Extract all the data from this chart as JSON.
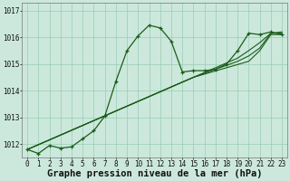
{
  "title": "Graphe pression niveau de la mer (hPa)",
  "bg_color": "#cce8dc",
  "grid_color": "#99ccb3",
  "line_color": "#1a5c1a",
  "marker_color": "#1a5c1a",
  "xlim": [
    -0.5,
    23.5
  ],
  "ylim": [
    1011.5,
    1017.3
  ],
  "yticks": [
    1012,
    1013,
    1014,
    1015,
    1016,
    1017
  ],
  "xticks": [
    0,
    1,
    2,
    3,
    4,
    5,
    6,
    7,
    8,
    9,
    10,
    11,
    12,
    13,
    14,
    15,
    16,
    17,
    18,
    19,
    20,
    21,
    22,
    23
  ],
  "series_main": [
    1011.8,
    1011.65,
    1011.95,
    1011.85,
    1011.9,
    1012.2,
    1012.5,
    1013.05,
    1014.35,
    1015.5,
    1016.05,
    1016.45,
    1016.35,
    1015.85,
    1014.7,
    1014.75,
    1014.75,
    1014.8,
    1015.0,
    1015.5,
    1016.15,
    1016.1,
    1016.2,
    1016.1
  ],
  "series_linear1": [
    1011.8,
    1011.98,
    1012.16,
    1012.34,
    1012.52,
    1012.7,
    1012.88,
    1013.06,
    1013.24,
    1013.42,
    1013.6,
    1013.78,
    1013.96,
    1014.14,
    1014.32,
    1014.5,
    1014.62,
    1014.74,
    1014.86,
    1014.98,
    1015.1,
    1015.5,
    1016.1,
    1016.1
  ],
  "series_linear2": [
    1011.8,
    1011.98,
    1012.16,
    1012.34,
    1012.52,
    1012.7,
    1012.88,
    1013.06,
    1013.24,
    1013.42,
    1013.6,
    1013.78,
    1013.96,
    1014.14,
    1014.32,
    1014.5,
    1014.65,
    1014.8,
    1014.95,
    1015.1,
    1015.3,
    1015.6,
    1016.15,
    1016.15
  ],
  "series_linear3": [
    1011.8,
    1011.98,
    1012.16,
    1012.34,
    1012.52,
    1012.7,
    1012.88,
    1013.06,
    1013.24,
    1013.42,
    1013.6,
    1013.78,
    1013.96,
    1014.14,
    1014.32,
    1014.5,
    1014.68,
    1014.86,
    1015.04,
    1015.22,
    1015.5,
    1015.8,
    1016.15,
    1016.2
  ],
  "tick_fontsize": 5.5,
  "label_fontsize": 7.5
}
